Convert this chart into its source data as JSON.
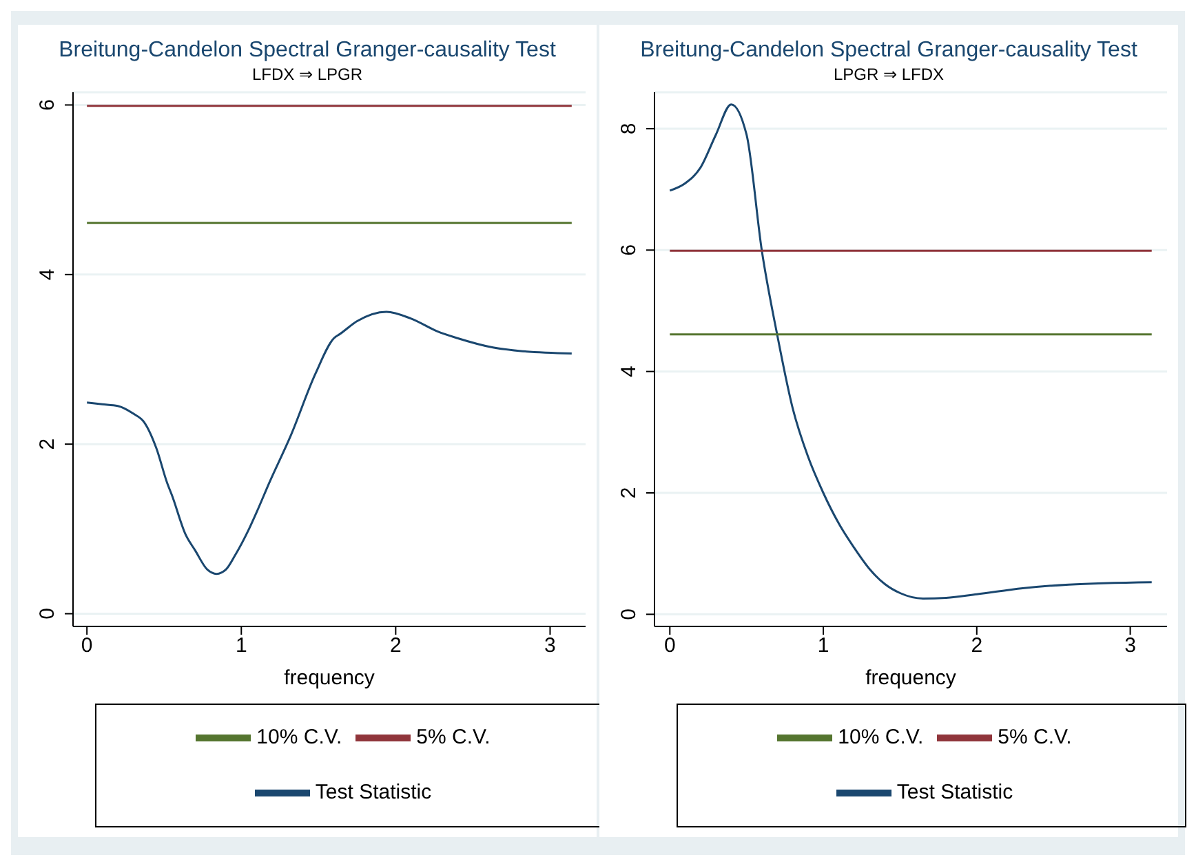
{
  "chart_data": [
    {
      "type": "line",
      "title": "Breitung-Candelon Spectral Granger-causality Test",
      "subtitle": "LFDX ⇒ LPGR",
      "xlabel": "frequency",
      "xlim": [
        -0.09,
        3.23
      ],
      "xticks": [
        0,
        1,
        2,
        3
      ],
      "ylim": [
        -0.15,
        6.15
      ],
      "yticks": [
        0,
        2,
        4,
        6
      ],
      "grid": "y",
      "legend": "bottom",
      "marker": "none",
      "line_style": "solid",
      "series": [
        {
          "name": "Test Statistic",
          "color": "#1a476f",
          "x": [
            0,
            0.1,
            0.2,
            0.3,
            0.37,
            0.45,
            0.52,
            0.55,
            0.64,
            0.7,
            0.78,
            0.84,
            0.9,
            0.96,
            1.05,
            1.1,
            1.18,
            1.32,
            1.48,
            1.6,
            1.64,
            1.75,
            1.94,
            2.1,
            2.27,
            2.4,
            2.63,
            2.8,
            3.14
          ],
          "values": [
            2.49,
            2.47,
            2.45,
            2.36,
            2.26,
            1.95,
            1.54,
            1.4,
            0.93,
            0.75,
            0.52,
            0.47,
            0.52,
            0.69,
            1.0,
            1.2,
            1.54,
            2.1,
            2.83,
            3.25,
            3.3,
            3.45,
            3.56,
            3.48,
            3.33,
            3.25,
            3.14,
            3.1,
            3.07
          ]
        },
        {
          "name": "5% C.V.",
          "color": "#90353b",
          "x": [
            0,
            3.14
          ],
          "values": [
            5.99,
            5.99
          ]
        },
        {
          "name": "10% C.V.",
          "color": "#55752f",
          "x": [
            0,
            3.14
          ],
          "values": [
            4.61,
            4.61
          ]
        }
      ]
    },
    {
      "type": "line",
      "title": "Breitung-Candelon Spectral Granger-causality Test",
      "subtitle": "LPGR ⇒ LFDX",
      "xlabel": "frequency",
      "xlim": [
        -0.1,
        3.24
      ],
      "xticks": [
        0,
        1,
        2,
        3
      ],
      "ylim": [
        -0.2,
        8.6
      ],
      "yticks": [
        0,
        2,
        4,
        6,
        8
      ],
      "grid": "y",
      "legend": "bottom",
      "marker": "none",
      "line_style": "solid",
      "series": [
        {
          "name": "Test Statistic",
          "color": "#1a476f",
          "x": [
            0,
            0.1,
            0.2,
            0.3,
            0.4,
            0.5,
            0.6,
            0.7,
            0.8,
            0.9,
            1.0,
            1.1,
            1.2,
            1.3,
            1.4,
            1.5,
            1.65,
            1.8,
            2.0,
            2.3,
            2.6,
            3.14
          ],
          "values": [
            6.98,
            7.1,
            7.36,
            7.9,
            8.4,
            7.9,
            5.98,
            4.6,
            3.4,
            2.6,
            2.0,
            1.5,
            1.1,
            0.75,
            0.5,
            0.35,
            0.26,
            0.27,
            0.33,
            0.43,
            0.49,
            0.53
          ]
        },
        {
          "name": "5% C.V.",
          "color": "#90353b",
          "x": [
            0,
            3.14
          ],
          "values": [
            5.99,
            5.99
          ]
        },
        {
          "name": "10% C.V.",
          "color": "#55752f",
          "x": [
            0,
            3.14
          ],
          "values": [
            4.61,
            4.61
          ]
        }
      ]
    }
  ]
}
